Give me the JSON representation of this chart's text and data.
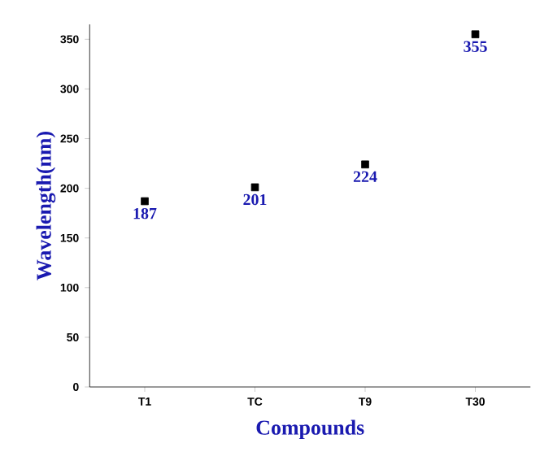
{
  "chart_data": {
    "type": "scatter",
    "xlabel": "Compounds",
    "ylabel": "Wavelength(nm)",
    "categories": [
      "T1",
      "TC",
      "T9",
      "T30"
    ],
    "values": [
      187,
      201,
      224,
      355
    ],
    "color": "#000000",
    "marker": "square",
    "data_labels": true,
    "grid": false,
    "ylim": [
      0,
      365
    ],
    "yticks": [
      0,
      50,
      100,
      150,
      200,
      250,
      300,
      350
    ]
  }
}
